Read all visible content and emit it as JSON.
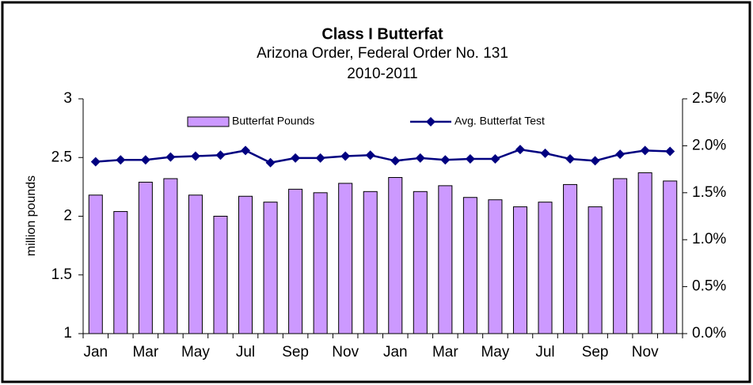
{
  "chart_data": {
    "type": "bar",
    "title": "Class I Butterfat",
    "subtitle": [
      "Arizona Order, Federal Order No. 131",
      "2010-2011"
    ],
    "ylabel": "million pounds",
    "categories": [
      "Jan",
      null,
      "Mar",
      null,
      "May",
      null,
      "Jul",
      null,
      "Sep",
      null,
      "Nov",
      null,
      "Jan",
      null,
      "Mar",
      null,
      "May",
      null,
      "Jul",
      null,
      "Sep",
      null,
      "Nov",
      null
    ],
    "series": [
      {
        "name": "Butterfat Pounds",
        "type": "bar",
        "color": "#cc99ff",
        "values": [
          2.18,
          2.04,
          2.29,
          2.32,
          2.18,
          2.0,
          2.17,
          2.12,
          2.23,
          2.2,
          2.28,
          2.21,
          2.33,
          2.21,
          2.26,
          2.16,
          2.14,
          2.08,
          2.12,
          2.27,
          2.08,
          2.32,
          2.37,
          2.3
        ]
      },
      {
        "name": "Avg. Butterfat Test",
        "type": "line",
        "axis": "y2",
        "color": "#000080",
        "values": [
          1.83,
          1.85,
          1.85,
          1.88,
          1.89,
          1.9,
          1.95,
          1.82,
          1.87,
          1.87,
          1.89,
          1.9,
          1.84,
          1.87,
          1.85,
          1.86,
          1.86,
          1.96,
          1.92,
          1.86,
          1.84,
          1.91,
          1.95,
          1.94
        ]
      }
    ],
    "ylim": [
      1,
      3
    ],
    "yticks": [
      1,
      1.5,
      2,
      2.5,
      3
    ],
    "y2lim": [
      0,
      2.5
    ],
    "y2ticks": [
      {
        "value": 0,
        "label": "0.0%"
      },
      {
        "value": 0.5,
        "label": "0.5%"
      },
      {
        "value": 1,
        "label": "1.0%"
      },
      {
        "value": 1.5,
        "label": "1.5%"
      },
      {
        "value": 2,
        "label": "2.0%"
      },
      {
        "value": 2.5,
        "label": "2.5%"
      }
    ],
    "legend": "top",
    "grid": false
  }
}
